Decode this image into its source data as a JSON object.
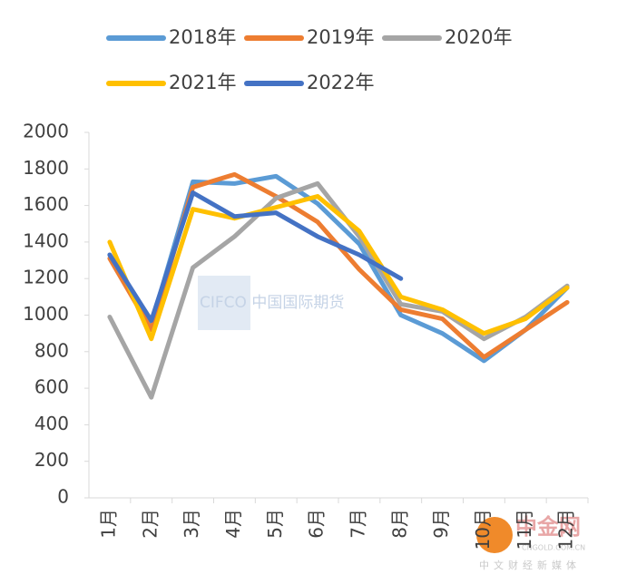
{
  "chart_data": {
    "type": "line",
    "categories": [
      "1月",
      "2月",
      "3月",
      "4月",
      "5月",
      "6月",
      "7月",
      "8月",
      "9月",
      "10月",
      "11月",
      "12月"
    ],
    "series": [
      {
        "name": "2018年",
        "color": "#5b9bd5",
        "values": [
          1330,
          950,
          1730,
          1720,
          1760,
          1610,
          1390,
          1000,
          900,
          750,
          920,
          1150
        ]
      },
      {
        "name": "2019年",
        "color": "#ed7d31",
        "values": [
          1310,
          920,
          1700,
          1770,
          1650,
          1510,
          1250,
          1030,
          980,
          770,
          920,
          1070
        ]
      },
      {
        "name": "2020年",
        "color": "#a5a5a5",
        "values": [
          990,
          550,
          1260,
          1430,
          1640,
          1720,
          1430,
          1060,
          1020,
          870,
          990,
          1160
        ]
      },
      {
        "name": "2021年",
        "color": "#ffc000",
        "values": [
          1400,
          870,
          1580,
          1530,
          1590,
          1650,
          1460,
          1100,
          1030,
          900,
          980,
          1150
        ]
      },
      {
        "name": "2022年",
        "color": "#4472c4",
        "values": [
          1330,
          970,
          1670,
          1540,
          1560,
          1430,
          1330,
          1200,
          null,
          null,
          null,
          null
        ]
      }
    ],
    "ylim": [
      0,
      2000
    ],
    "yticks": [
      0,
      200,
      400,
      600,
      800,
      1000,
      1200,
      1400,
      1600,
      1800,
      2000
    ],
    "grid": false,
    "legend": "top"
  },
  "watermarks": {
    "center": "CIFCO 中国国际期货",
    "logo": "中金网",
    "site": "CNGOLD.COM.CN",
    "tagline": "中文财经新媒体"
  }
}
